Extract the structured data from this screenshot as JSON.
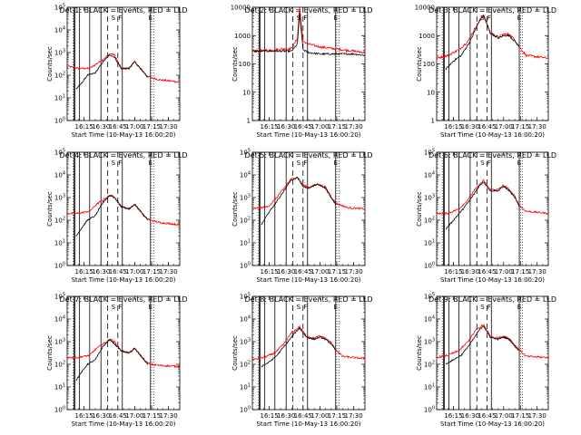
{
  "figure": {
    "background": "#ffffff",
    "axis_color": "#000000"
  },
  "chart_data": [
    {
      "type": "line",
      "title": "Det 1: BLACK = Events, RED = LLD",
      "xlabel": "Start Time (10-May-13 16:00:20)",
      "ylabel": "Counts/sec",
      "x_ticks": [
        "16:15",
        "16:30",
        "16:45",
        "17:00",
        "17:15",
        "17:30"
      ],
      "y_ticks": [
        "10^0",
        "10^1",
        "10^2",
        "10^3",
        "10^4",
        "10^5"
      ],
      "yscale": "log",
      "ylim_exponent": [
        0,
        5
      ],
      "grid": false,
      "legend": "none",
      "markers": [
        {
          "label": "S",
          "time": "16:41"
        },
        {
          "label": "F",
          "time": "16:47"
        },
        {
          "label": "E",
          "time": "17:14"
        }
      ],
      "black_exponent_at": {
        "x": [
          "16:08",
          "16:12",
          "16:18",
          "16:25",
          "16:32",
          "16:38",
          "16:42",
          "16:48",
          "16:55",
          "17:00",
          "17:05",
          "17:10",
          "17:12"
        ],
        "y": [
          1.4,
          1.6,
          2.0,
          2.1,
          2.6,
          2.9,
          2.8,
          2.3,
          2.3,
          2.6,
          2.3,
          2.0,
          1.9
        ]
      },
      "red_exponent_at": {
        "x": [
          "16:00",
          "16:10",
          "16:20",
          "16:26",
          "16:32",
          "16:38",
          "16:42",
          "16:48",
          "16:55",
          "17:00",
          "17:05",
          "17:10",
          "17:14",
          "17:22",
          "17:40"
        ],
        "y": [
          2.4,
          2.3,
          2.3,
          2.5,
          2.7,
          2.95,
          2.9,
          2.3,
          2.3,
          2.6,
          2.3,
          2.0,
          1.9,
          1.8,
          1.7
        ]
      }
    },
    {
      "type": "line",
      "title": "Det 2: BLACK = Events, RED = LLD",
      "xlabel": "Start Time (10-May-13 16:00:20)",
      "ylabel": "Counts/sec",
      "x_ticks": [
        "16:15",
        "16:30",
        "16:45",
        "17:00",
        "17:15",
        "17:30"
      ],
      "y_ticks": [
        "1",
        "10",
        "100",
        "1000",
        "10000"
      ],
      "yscale": "log",
      "ylim_exponent": [
        0,
        4
      ],
      "grid": false,
      "legend": "none",
      "markers": [
        {
          "label": "S",
          "time": "16:41"
        },
        {
          "label": "F",
          "time": "16:47"
        },
        {
          "label": "E",
          "time": "17:14"
        }
      ],
      "black_exponent_at": {
        "x": [
          "16:00",
          "16:20",
          "16:35",
          "16:40",
          "16:42",
          "16:45",
          "16:50",
          "17:00",
          "17:10",
          "17:20",
          "17:30",
          "17:40"
        ],
        "y": [
          2.45,
          2.45,
          2.45,
          2.7,
          3.8,
          2.5,
          2.4,
          2.35,
          2.35,
          2.35,
          2.35,
          2.3
        ]
      },
      "red_exponent_at": {
        "x": [
          "16:00",
          "16:20",
          "16:35",
          "16:40",
          "16:42",
          "16:45",
          "16:50",
          "17:00",
          "17:10",
          "17:20",
          "17:30",
          "17:40"
        ],
        "y": [
          2.45,
          2.5,
          2.55,
          2.9,
          4.0,
          2.8,
          2.7,
          2.6,
          2.55,
          2.5,
          2.45,
          2.4
        ]
      }
    },
    {
      "type": "line",
      "title": "Det 3: BLACK = Events, RED = LLD",
      "xlabel": "Start Time (10-May-13 16:00:20)",
      "ylabel": "Counts/sec",
      "x_ticks": [
        "16:15",
        "16:30",
        "16:45",
        "17:00",
        "17:15",
        "17:30"
      ],
      "y_ticks": [
        "1",
        "10",
        "100",
        "1000",
        "10000"
      ],
      "yscale": "log",
      "ylim_exponent": [
        0,
        4
      ],
      "grid": false,
      "legend": "none",
      "markers": [
        {
          "label": "S",
          "time": "16:41"
        },
        {
          "label": "F",
          "time": "16:47"
        },
        {
          "label": "E",
          "time": "17:14"
        }
      ],
      "black_exponent_at": {
        "x": [
          "16:08",
          "16:15",
          "16:22",
          "16:30",
          "16:38",
          "16:42",
          "16:48",
          "16:55",
          "17:00",
          "17:05",
          "17:10",
          "17:14"
        ],
        "y": [
          1.8,
          2.1,
          2.3,
          2.8,
          3.5,
          3.7,
          3.1,
          2.9,
          3.0,
          3.0,
          2.8,
          2.6
        ]
      },
      "red_exponent_at": {
        "x": [
          "16:00",
          "16:10",
          "16:20",
          "16:28",
          "16:35",
          "16:42",
          "16:48",
          "16:55",
          "17:00",
          "17:05",
          "17:10",
          "17:14",
          "17:20",
          "17:40"
        ],
        "y": [
          2.2,
          2.3,
          2.5,
          2.8,
          3.3,
          3.75,
          3.1,
          2.95,
          3.05,
          3.05,
          2.85,
          2.6,
          2.3,
          2.2
        ]
      }
    },
    {
      "type": "line",
      "title": "Det 4: BLACK = Events, RED = LLD",
      "xlabel": "Start Time (10-May-13 16:00:20)",
      "ylabel": "Counts/sec",
      "x_ticks": [
        "16:15",
        "16:30",
        "16:45",
        "17:00",
        "17:15",
        "17:30"
      ],
      "y_ticks": [
        "10^0",
        "10^1",
        "10^2",
        "10^3",
        "10^4",
        "10^5"
      ],
      "yscale": "log",
      "ylim_exponent": [
        0,
        5
      ],
      "grid": false,
      "legend": "none",
      "markers": [
        {
          "label": "S",
          "time": "16:41"
        },
        {
          "label": "F",
          "time": "16:47"
        },
        {
          "label": "E",
          "time": "17:14"
        }
      ],
      "black_exponent_at": {
        "x": [
          "16:08",
          "16:12",
          "16:18",
          "16:25",
          "16:32",
          "16:38",
          "16:42",
          "16:48",
          "16:55",
          "17:00",
          "17:05",
          "17:10",
          "17:12"
        ],
        "y": [
          1.3,
          1.6,
          2.0,
          2.2,
          2.8,
          3.1,
          3.0,
          2.6,
          2.5,
          2.7,
          2.4,
          2.1,
          2.0
        ]
      },
      "red_exponent_at": {
        "x": [
          "16:00",
          "16:10",
          "16:20",
          "16:26",
          "16:32",
          "16:38",
          "16:42",
          "16:48",
          "16:55",
          "17:00",
          "17:05",
          "17:10",
          "17:14",
          "17:22",
          "17:40"
        ],
        "y": [
          2.3,
          2.3,
          2.4,
          2.7,
          2.9,
          3.1,
          3.05,
          2.6,
          2.5,
          2.7,
          2.4,
          2.1,
          2.0,
          1.9,
          1.8
        ]
      }
    },
    {
      "type": "line",
      "title": "Det 5: BLACK = Events, RED = LLD",
      "xlabel": "Start Time (10-May-13 16:00:20)",
      "ylabel": "Counts/sec",
      "x_ticks": [
        "16:15",
        "16:30",
        "16:45",
        "17:00",
        "17:15",
        "17:30"
      ],
      "y_ticks": [
        "10^0",
        "10^1",
        "10^2",
        "10^3",
        "10^4",
        "10^5"
      ],
      "yscale": "log",
      "ylim_exponent": [
        0,
        5
      ],
      "grid": false,
      "legend": "none",
      "markers": [
        {
          "label": "S",
          "time": "16:41"
        },
        {
          "label": "F",
          "time": "16:47"
        },
        {
          "label": "E",
          "time": "17:14"
        }
      ],
      "black_exponent_at": {
        "x": [
          "16:08",
          "16:14",
          "16:20",
          "16:28",
          "16:34",
          "16:40",
          "16:45",
          "16:50",
          "16:58",
          "17:05",
          "17:10",
          "17:14"
        ],
        "y": [
          1.8,
          2.3,
          2.7,
          3.3,
          3.75,
          3.9,
          3.5,
          3.4,
          3.6,
          3.4,
          3.0,
          2.7
        ]
      },
      "red_exponent_at": {
        "x": [
          "16:00",
          "16:14",
          "16:20",
          "16:28",
          "16:34",
          "16:40",
          "16:45",
          "16:50",
          "16:58",
          "17:05",
          "17:10",
          "17:14",
          "17:25",
          "17:40"
        ],
        "y": [
          2.5,
          2.6,
          2.9,
          3.4,
          3.8,
          3.9,
          3.55,
          3.45,
          3.6,
          3.45,
          3.05,
          2.75,
          2.55,
          2.5
        ]
      }
    },
    {
      "type": "line",
      "title": "Det 6: BLACK = Events, RED = LLD",
      "xlabel": "Start Time (10-May-13 16:00:20)",
      "ylabel": "Counts/sec",
      "x_ticks": [
        "16:15",
        "16:30",
        "16:45",
        "17:00",
        "17:15",
        "17:30"
      ],
      "y_ticks": [
        "10^0",
        "10^1",
        "10^2",
        "10^3",
        "10^4",
        "10^5"
      ],
      "yscale": "log",
      "ylim_exponent": [
        0,
        5
      ],
      "grid": false,
      "legend": "none",
      "markers": [
        {
          "label": "S",
          "time": "16:41"
        },
        {
          "label": "F",
          "time": "16:47"
        },
        {
          "label": "E",
          "time": "17:14"
        }
      ],
      "black_exponent_at": {
        "x": [
          "16:08",
          "16:15",
          "16:22",
          "16:30",
          "16:38",
          "16:42",
          "16:48",
          "16:55",
          "17:00",
          "17:05",
          "17:10",
          "17:14"
        ],
        "y": [
          1.6,
          2.0,
          2.4,
          2.9,
          3.5,
          3.7,
          3.3,
          3.3,
          3.5,
          3.3,
          3.0,
          2.6
        ]
      },
      "red_exponent_at": {
        "x": [
          "16:00",
          "16:10",
          "16:20",
          "16:28",
          "16:35",
          "16:42",
          "16:48",
          "16:55",
          "17:00",
          "17:05",
          "17:10",
          "17:14",
          "17:20",
          "17:40"
        ],
        "y": [
          2.3,
          2.3,
          2.5,
          2.9,
          3.4,
          3.75,
          3.35,
          3.35,
          3.55,
          3.35,
          3.05,
          2.65,
          2.4,
          2.3
        ]
      }
    },
    {
      "type": "line",
      "title": "Det 7: BLACK = Events, RED = LLD",
      "xlabel": "Start Time (10-May-13 16:00:20)",
      "ylabel": "Counts/sec",
      "x_ticks": [
        "16:15",
        "16:30",
        "16:45",
        "17:00",
        "17:15",
        "17:30"
      ],
      "y_ticks": [
        "10^0",
        "10^1",
        "10^2",
        "10^3",
        "10^4",
        "10^5"
      ],
      "yscale": "log",
      "ylim_exponent": [
        0,
        5
      ],
      "grid": false,
      "legend": "none",
      "markers": [
        {
          "label": "S",
          "time": "16:41"
        },
        {
          "label": "F",
          "time": "16:47"
        },
        {
          "label": "E",
          "time": "17:14"
        }
      ],
      "black_exponent_at": {
        "x": [
          "16:08",
          "16:12",
          "16:18",
          "16:25",
          "16:32",
          "16:38",
          "16:42",
          "16:48",
          "16:55",
          "17:00",
          "17:05",
          "17:10",
          "17:12"
        ],
        "y": [
          1.3,
          1.6,
          2.0,
          2.2,
          2.8,
          3.1,
          2.9,
          2.6,
          2.5,
          2.7,
          2.4,
          2.1,
          2.0
        ]
      },
      "red_exponent_at": {
        "x": [
          "16:00",
          "16:10",
          "16:20",
          "16:26",
          "16:32",
          "16:38",
          "16:42",
          "16:48",
          "16:55",
          "17:00",
          "17:05",
          "17:10",
          "17:14",
          "17:22",
          "17:40"
        ],
        "y": [
          2.3,
          2.3,
          2.4,
          2.7,
          2.9,
          3.1,
          3.0,
          2.6,
          2.5,
          2.7,
          2.4,
          2.1,
          2.0,
          1.95,
          1.9
        ]
      }
    },
    {
      "type": "line",
      "title": "Det 8: BLACK = Events, RED = LLD",
      "xlabel": "Start Time (10-May-13 16:00:20)",
      "ylabel": "Counts/sec",
      "x_ticks": [
        "16:15",
        "16:30",
        "16:45",
        "17:00",
        "17:15",
        "17:30"
      ],
      "y_ticks": [
        "10^0",
        "10^1",
        "10^2",
        "10^3",
        "10^4",
        "10^5"
      ],
      "yscale": "log",
      "ylim_exponent": [
        0,
        5
      ],
      "grid": false,
      "legend": "none",
      "markers": [
        {
          "label": "S",
          "time": "16:41"
        },
        {
          "label": "F",
          "time": "16:47"
        },
        {
          "label": "E",
          "time": "17:14"
        }
      ],
      "black_exponent_at": {
        "x": [
          "16:08",
          "16:15",
          "16:22",
          "16:30",
          "16:38",
          "16:42",
          "16:48",
          "16:55",
          "17:00",
          "17:05",
          "17:10",
          "17:14"
        ],
        "y": [
          1.9,
          2.1,
          2.4,
          2.9,
          3.4,
          3.6,
          3.2,
          3.1,
          3.2,
          3.1,
          2.9,
          2.6
        ]
      },
      "red_exponent_at": {
        "x": [
          "16:00",
          "16:10",
          "16:20",
          "16:28",
          "16:35",
          "16:42",
          "16:48",
          "16:55",
          "17:00",
          "17:05",
          "17:10",
          "17:14",
          "17:20",
          "17:40"
        ],
        "y": [
          2.2,
          2.3,
          2.5,
          2.9,
          3.4,
          3.65,
          3.25,
          3.15,
          3.25,
          3.15,
          2.95,
          2.65,
          2.35,
          2.25
        ]
      }
    },
    {
      "type": "line",
      "title": "Det 9: BLACK = Events, RED = LLD",
      "xlabel": "Start Time (10-May-13 16:00:20)",
      "ylabel": "Counts/sec",
      "x_ticks": [
        "16:15",
        "16:30",
        "16:45",
        "17:00",
        "17:15",
        "17:30"
      ],
      "y_ticks": [
        "10^0",
        "10^1",
        "10^2",
        "10^3",
        "10^4",
        "10^5"
      ],
      "yscale": "log",
      "ylim_exponent": [
        0,
        5
      ],
      "grid": false,
      "legend": "none",
      "markers": [
        {
          "label": "S",
          "time": "16:41"
        },
        {
          "label": "F",
          "time": "16:47"
        },
        {
          "label": "E",
          "time": "17:14"
        }
      ],
      "black_exponent_at": {
        "x": [
          "16:08",
          "16:15",
          "16:22",
          "16:30",
          "16:38",
          "16:42",
          "16:48",
          "16:55",
          "17:00",
          "17:05",
          "17:10",
          "17:14"
        ],
        "y": [
          2.0,
          2.2,
          2.4,
          2.9,
          3.5,
          3.7,
          3.2,
          3.1,
          3.2,
          3.1,
          2.8,
          2.6
        ]
      },
      "red_exponent_at": {
        "x": [
          "16:00",
          "16:10",
          "16:20",
          "16:28",
          "16:35",
          "16:42",
          "16:48",
          "16:55",
          "17:00",
          "17:05",
          "17:10",
          "17:14",
          "17:20",
          "17:40"
        ],
        "y": [
          2.3,
          2.4,
          2.6,
          3.0,
          3.5,
          3.75,
          3.25,
          3.15,
          3.25,
          3.15,
          2.85,
          2.65,
          2.35,
          2.3
        ]
      }
    }
  ]
}
